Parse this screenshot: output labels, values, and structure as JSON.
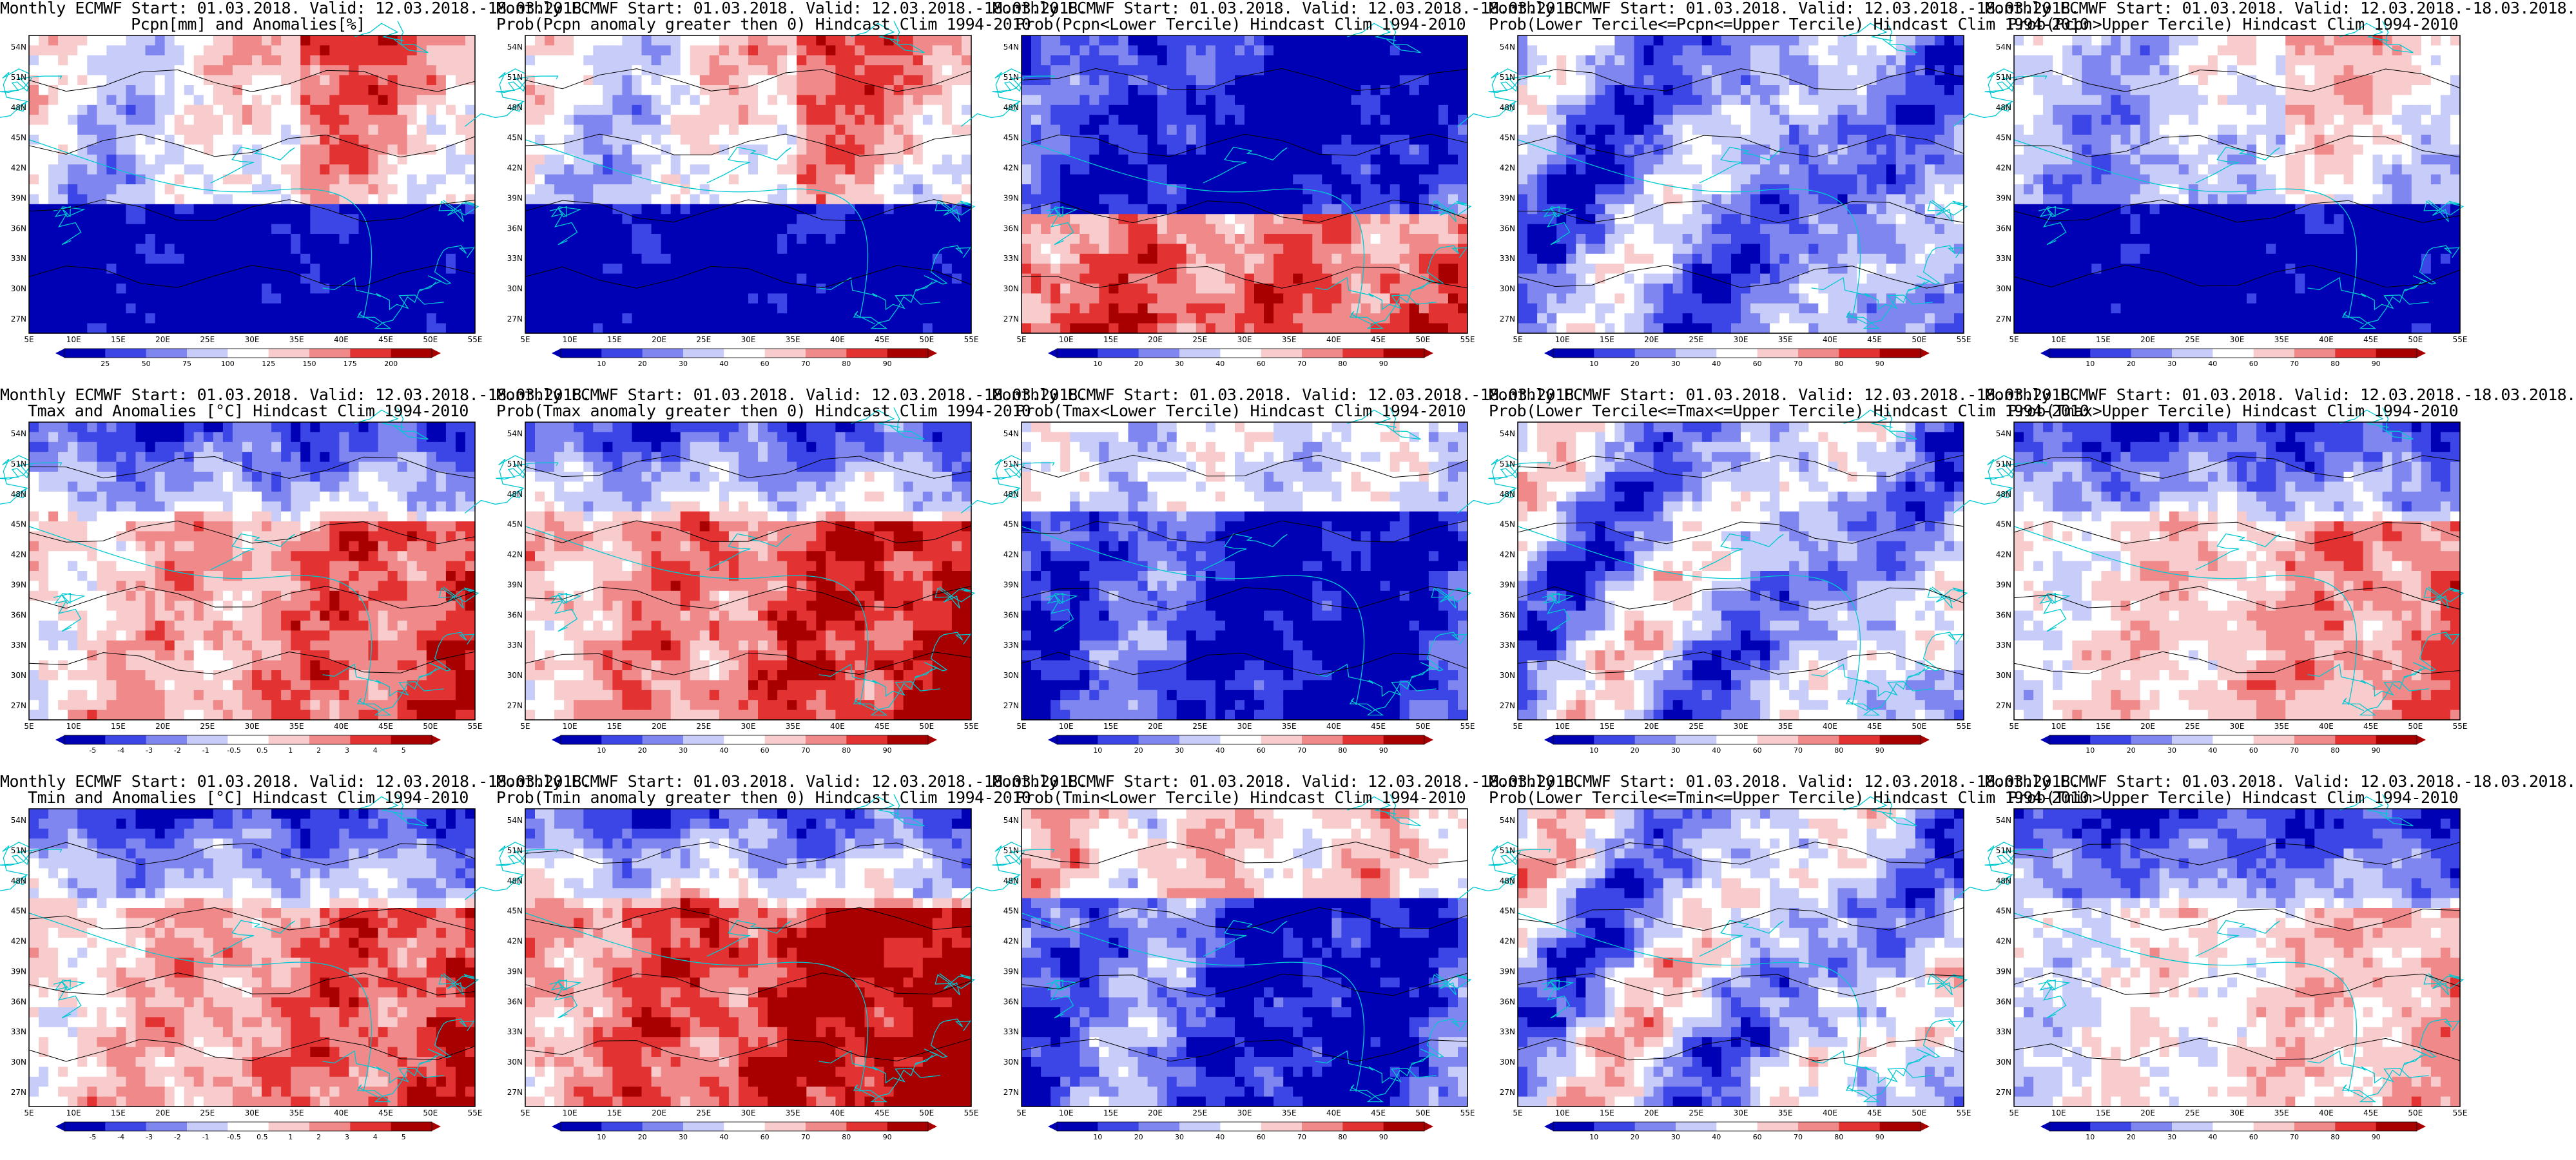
{
  "colors": {
    "blue_dark": "#0000b4",
    "blue_mid": "#3c46e6",
    "blue_light": "#7f86f0",
    "blue_pale": "#c8ccf8",
    "white": "#ffffff",
    "red_pale": "#f8cccc",
    "red_light": "#f08a8a",
    "red_mid": "#e23232",
    "red_dark": "#a80000",
    "coast": "#00c8d2",
    "contour": "#000000"
  },
  "axes": {
    "lat_labels": [
      "54N",
      "51N",
      "48N",
      "45N",
      "42N",
      "39N",
      "36N",
      "33N",
      "30N",
      "27N"
    ],
    "lon_labels": [
      "5E",
      "10E",
      "15E",
      "20E",
      "25E",
      "30E",
      "35E",
      "40E",
      "45E",
      "50E",
      "55E"
    ]
  },
  "panels": [
    {
      "title1": "Monthly ECMWF Start: 01.03.2018. Valid: 12.03.2018.-18.03.2018.",
      "title2": "Pcpn[mm] and Anomalies[%]",
      "scale": "pcpn_anom",
      "pattern": "pcpn",
      "polarity": 1,
      "colorbar": [
        "25",
        "50",
        "75",
        "100",
        "125",
        "150",
        "175",
        "200"
      ]
    },
    {
      "title1": "Monthly ECMWF Start: 01.03.2018. Valid: 12.03.2018.-18.03.2018.",
      "title2": "Prob(Pcpn anomaly greater then 0) Hindcast Clim 1994-2010",
      "scale": "prob",
      "pattern": "pcpn",
      "polarity": 1,
      "colorbar": [
        "10",
        "20",
        "30",
        "40",
        "60",
        "70",
        "80",
        "90"
      ]
    },
    {
      "title1": "Monthly ECMWF Start: 01.03.2018. Valid: 12.03.2018.-18.03.2018.",
      "title2": "Prob(Pcpn<Lower Tercile) Hindcast Clim 1994-2010",
      "scale": "prob",
      "pattern": "pcpn_low",
      "polarity": 1,
      "colorbar": [
        "10",
        "20",
        "30",
        "40",
        "60",
        "70",
        "80",
        "90"
      ]
    },
    {
      "title1": "Monthly ECMWF Start: 01.03.2018. Valid: 12.03.2018.-18.03.2018.",
      "title2": "Prob(Lower Tercile<=Pcpn<=Upper Tercile) Hindcast Clim 1994-2010",
      "scale": "prob",
      "pattern": "mid",
      "polarity": 1,
      "colorbar": [
        "10",
        "20",
        "30",
        "40",
        "60",
        "70",
        "80",
        "90"
      ]
    },
    {
      "title1": "Monthly ECMWF Start: 01.03.2018. Valid: 12.03.2018.-18.03.2018.",
      "title2": "Prob(Pcpn>Upper Tercile) Hindcast Clim 1994-2010",
      "scale": "prob",
      "pattern": "pcpn",
      "polarity": 0.8,
      "colorbar": [
        "10",
        "20",
        "30",
        "40",
        "60",
        "70",
        "80",
        "90"
      ]
    },
    {
      "title1": "Monthly ECMWF Start: 01.03.2018. Valid: 12.03.2018.-18.03.2018.",
      "title2": "Tmax and Anomalies [°C] Hindcast Clim 1994-2010",
      "scale": "temp_anom",
      "pattern": "temp",
      "polarity": 1,
      "colorbar": [
        "-5",
        "-4",
        "-3",
        "-2",
        "-1",
        "-0.5",
        "0.5",
        "1",
        "2",
        "3",
        "4",
        "5"
      ]
    },
    {
      "title1": "Monthly ECMWF Start: 01.03.2018. Valid: 12.03.2018.-18.03.2018.",
      "title2": "Prob(Tmax anomaly greater then 0) Hindcast Clim 1994-2010",
      "scale": "prob",
      "pattern": "temp",
      "polarity": 1.1,
      "colorbar": [
        "10",
        "20",
        "30",
        "40",
        "60",
        "70",
        "80",
        "90"
      ]
    },
    {
      "title1": "Monthly ECMWF Start: 01.03.2018. Valid: 12.03.2018.-18.03.2018.",
      "title2": "Prob(Tmax<Lower Tercile) Hindcast Clim 1994-2010",
      "scale": "prob",
      "pattern": "temp_low",
      "polarity": 1,
      "colorbar": [
        "10",
        "20",
        "30",
        "40",
        "60",
        "70",
        "80",
        "90"
      ]
    },
    {
      "title1": "Monthly ECMWF Start: 01.03.2018. Valid: 12.03.2018.-18.03.2018.",
      "title2": "Prob(Lower Tercile<=Tmax<=Upper Tercile) Hindcast Clim 1994-2010",
      "scale": "prob",
      "pattern": "mid",
      "polarity": 1.2,
      "colorbar": [
        "10",
        "20",
        "30",
        "40",
        "60",
        "70",
        "80",
        "90"
      ]
    },
    {
      "title1": "Monthly ECMWF Start: 01.03.2018. Valid: 12.03.2018.-18.03.2018.",
      "title2": "Prob(Tmax>Upper Tercile) Hindcast Clim 1994-2010",
      "scale": "prob",
      "pattern": "temp",
      "polarity": 0.9,
      "colorbar": [
        "10",
        "20",
        "30",
        "40",
        "60",
        "70",
        "80",
        "90"
      ]
    },
    {
      "title1": "Monthly ECMWF Start: 01.03.2018. Valid: 12.03.2018.-18.03.2018.",
      "title2": "Tmin and Anomalies [°C] Hindcast Clim 1994-2010",
      "scale": "temp_anom",
      "pattern": "temp",
      "polarity": 1,
      "colorbar": [
        "-5",
        "-4",
        "-3",
        "-2",
        "-1",
        "-0.5",
        "0.5",
        "1",
        "2",
        "3",
        "4",
        "5"
      ]
    },
    {
      "title1": "Monthly ECMWF Start: 01.03.2018. Valid: 12.03.2018.-18.03.2018.",
      "title2": "Prob(Tmin anomaly greater then 0) Hindcast Clim 1994-2010",
      "scale": "prob",
      "pattern": "temp",
      "polarity": 1.2,
      "colorbar": [
        "10",
        "20",
        "30",
        "40",
        "60",
        "70",
        "80",
        "90"
      ]
    },
    {
      "title1": "Monthly ECMWF Start: 01.03.2018. Valid: 12.03.2018.-18.03.2018.",
      "title2": "Prob(Tmin<Lower Tercile) Hindcast Clim 1994-2010",
      "scale": "prob",
      "pattern": "temp_low",
      "polarity": 1.3,
      "colorbar": [
        "10",
        "20",
        "30",
        "40",
        "60",
        "70",
        "80",
        "90"
      ]
    },
    {
      "title1": "Monthly ECMWF Start: 01.03.2018. Valid: 12.03.2018.-18.03.2018.",
      "title2": "Prob(Lower Tercile<=Tmin<=Upper Tercile) Hindcast Clim 1994-2010",
      "scale": "prob",
      "pattern": "mid",
      "polarity": 1.3,
      "colorbar": [
        "10",
        "20",
        "30",
        "40",
        "60",
        "70",
        "80",
        "90"
      ]
    },
    {
      "title1": "Monthly ECMWF Start: 01.03.2018. Valid: 12.03.2018.-18.03.2018.",
      "title2": "Prob(Tmin>Upper Tercile) Hindcast Clim 1994-2010",
      "scale": "prob",
      "pattern": "temp",
      "polarity": 0.8,
      "colorbar": [
        "10",
        "20",
        "30",
        "40",
        "60",
        "70",
        "80",
        "90"
      ]
    }
  ]
}
